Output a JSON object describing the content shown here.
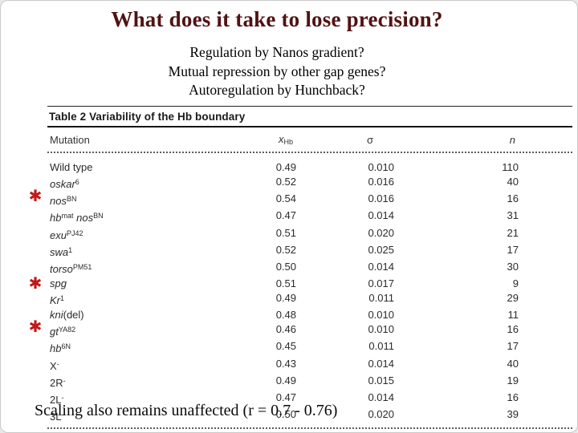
{
  "slide": {
    "title": "What does it take to lose precision?",
    "title_color": "#521212",
    "questions": [
      "Regulation by Nanos gradient?",
      "Mutual repression by other gap genes?",
      "Autoregulation by Hunchback?"
    ],
    "footer": "Scaling also remains unaffected (r = 0.7 - 0.76)"
  },
  "annotations": {
    "glyph": "✱",
    "color": "#c41616",
    "marker_rows": [
      2,
      8,
      11
    ]
  },
  "chart_data": {
    "type": "table",
    "title": "Table 2 Variability of the Hb boundary",
    "columns": {
      "mutation": "Mutation",
      "x": "x",
      "x_sub": "Hb",
      "sigma": "σ",
      "n": "n"
    },
    "rows": [
      {
        "name": [
          {
            "t": "Wild type"
          }
        ],
        "x": "0.49",
        "sigma": "0.010",
        "n": "110"
      },
      {
        "name": [
          {
            "t": "oskar",
            "i": true
          },
          {
            "t": "6",
            "sup": true
          }
        ],
        "x": "0.52",
        "sigma": "0.016",
        "n": "40"
      },
      {
        "name": [
          {
            "t": "nos",
            "i": true
          },
          {
            "t": "BN",
            "sup": true
          }
        ],
        "x": "0.54",
        "sigma": "0.016",
        "n": "16",
        "star": true
      },
      {
        "name": [
          {
            "t": "hb",
            "i": true
          },
          {
            "t": "mat",
            "sup": true
          },
          {
            "t": " "
          },
          {
            "t": "nos",
            "i": true
          },
          {
            "t": "BN",
            "sup": true
          }
        ],
        "x": "0.47",
        "sigma": "0.014",
        "n": "31"
      },
      {
        "name": [
          {
            "t": "exu",
            "i": true
          },
          {
            "t": "PJ42",
            "sup": true
          }
        ],
        "x": "0.51",
        "sigma": "0.020",
        "n": "21"
      },
      {
        "name": [
          {
            "t": "swa",
            "i": true
          },
          {
            "t": "1",
            "sup": true
          }
        ],
        "x": "0.52",
        "sigma": "0.025",
        "n": "17"
      },
      {
        "name": [
          {
            "t": "torso",
            "i": true
          },
          {
            "t": "PM51",
            "sup": true
          }
        ],
        "x": "0.50",
        "sigma": "0.014",
        "n": "30"
      },
      {
        "name": [
          {
            "t": "spg",
            "i": true
          }
        ],
        "x": "0.51",
        "sigma": "0.017",
        "n": "9"
      },
      {
        "name": [
          {
            "t": "Kr",
            "i": true
          },
          {
            "t": "1",
            "sup": true
          }
        ],
        "x": "0.49",
        "sigma": "0.011",
        "n": "29",
        "star": true
      },
      {
        "name": [
          {
            "t": "kni",
            "i": true
          },
          {
            "t": "(del)"
          }
        ],
        "x": "0.48",
        "sigma": "0.010",
        "n": "11"
      },
      {
        "name": [
          {
            "t": "gt",
            "i": true
          },
          {
            "t": "YA82",
            "sup": true
          }
        ],
        "x": "0.46",
        "sigma": "0.010",
        "n": "16"
      },
      {
        "name": [
          {
            "t": "hb",
            "i": true
          },
          {
            "t": "6N",
            "sup": true
          }
        ],
        "x": "0.45",
        "sigma": "0.011",
        "n": "17",
        "star": true
      },
      {
        "name": [
          {
            "t": "X"
          },
          {
            "t": "-",
            "sup": true
          }
        ],
        "x": "0.43",
        "sigma": "0.014",
        "n": "40"
      },
      {
        "name": [
          {
            "t": "2R"
          },
          {
            "t": "-",
            "sup": true
          }
        ],
        "x": "0.49",
        "sigma": "0.015",
        "n": "19"
      },
      {
        "name": [
          {
            "t": "2L"
          },
          {
            "t": "-",
            "sup": true
          }
        ],
        "x": "0.47",
        "sigma": "0.014",
        "n": "16"
      },
      {
        "name": [
          {
            "t": "3L"
          },
          {
            "t": "-",
            "sup": true
          }
        ],
        "x": "0.50",
        "sigma": "0.020",
        "n": "39"
      }
    ]
  }
}
